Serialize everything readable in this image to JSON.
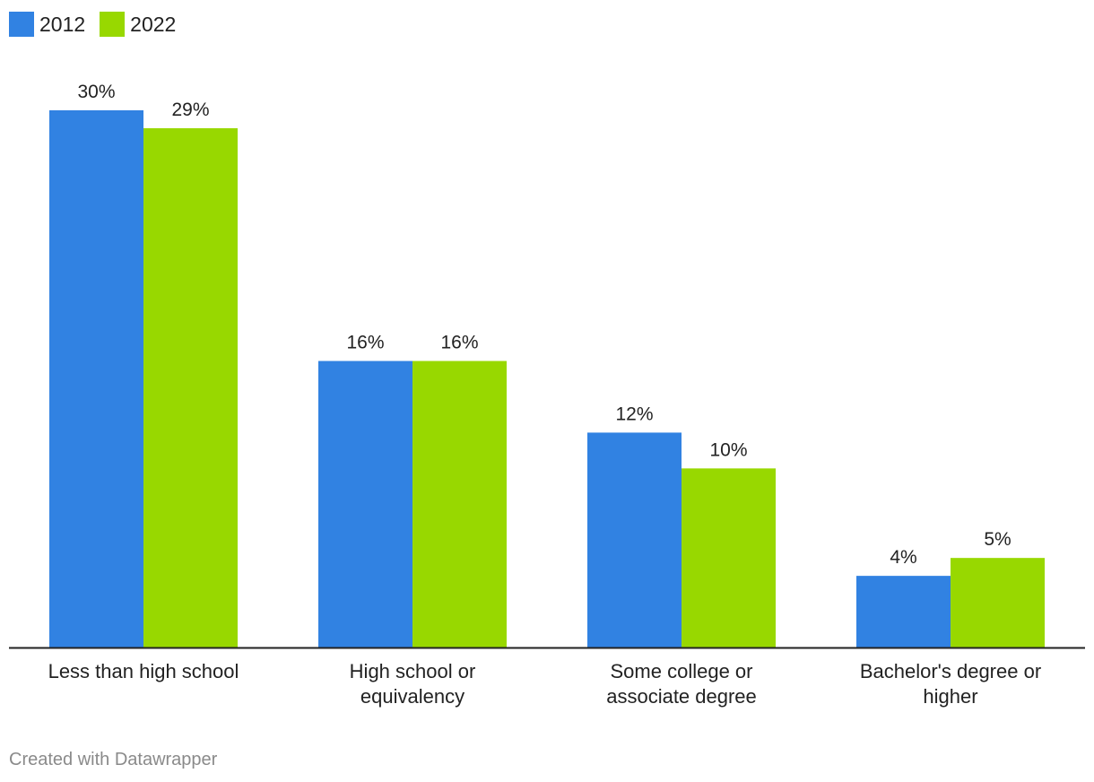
{
  "chart_data": {
    "type": "bar",
    "categories": [
      [
        "Less than high school"
      ],
      [
        "High school or",
        "equivalency"
      ],
      [
        "Some college or",
        "associate degree"
      ],
      [
        "Bachelor's degree or",
        "higher"
      ]
    ],
    "series": [
      {
        "name": "2012",
        "color": "#3182e2",
        "values": [
          30,
          16,
          12,
          4
        ],
        "labels": [
          "30%",
          "16%",
          "12%",
          "4%"
        ]
      },
      {
        "name": "2022",
        "color": "#98d800",
        "values": [
          29,
          16,
          10,
          5
        ],
        "labels": [
          "29%",
          "16%",
          "10%",
          "5%"
        ]
      }
    ],
    "ylim": [
      0,
      30
    ],
    "grid": false,
    "legend": "top-left"
  },
  "footer": {
    "credit": "Created with Datawrapper"
  }
}
